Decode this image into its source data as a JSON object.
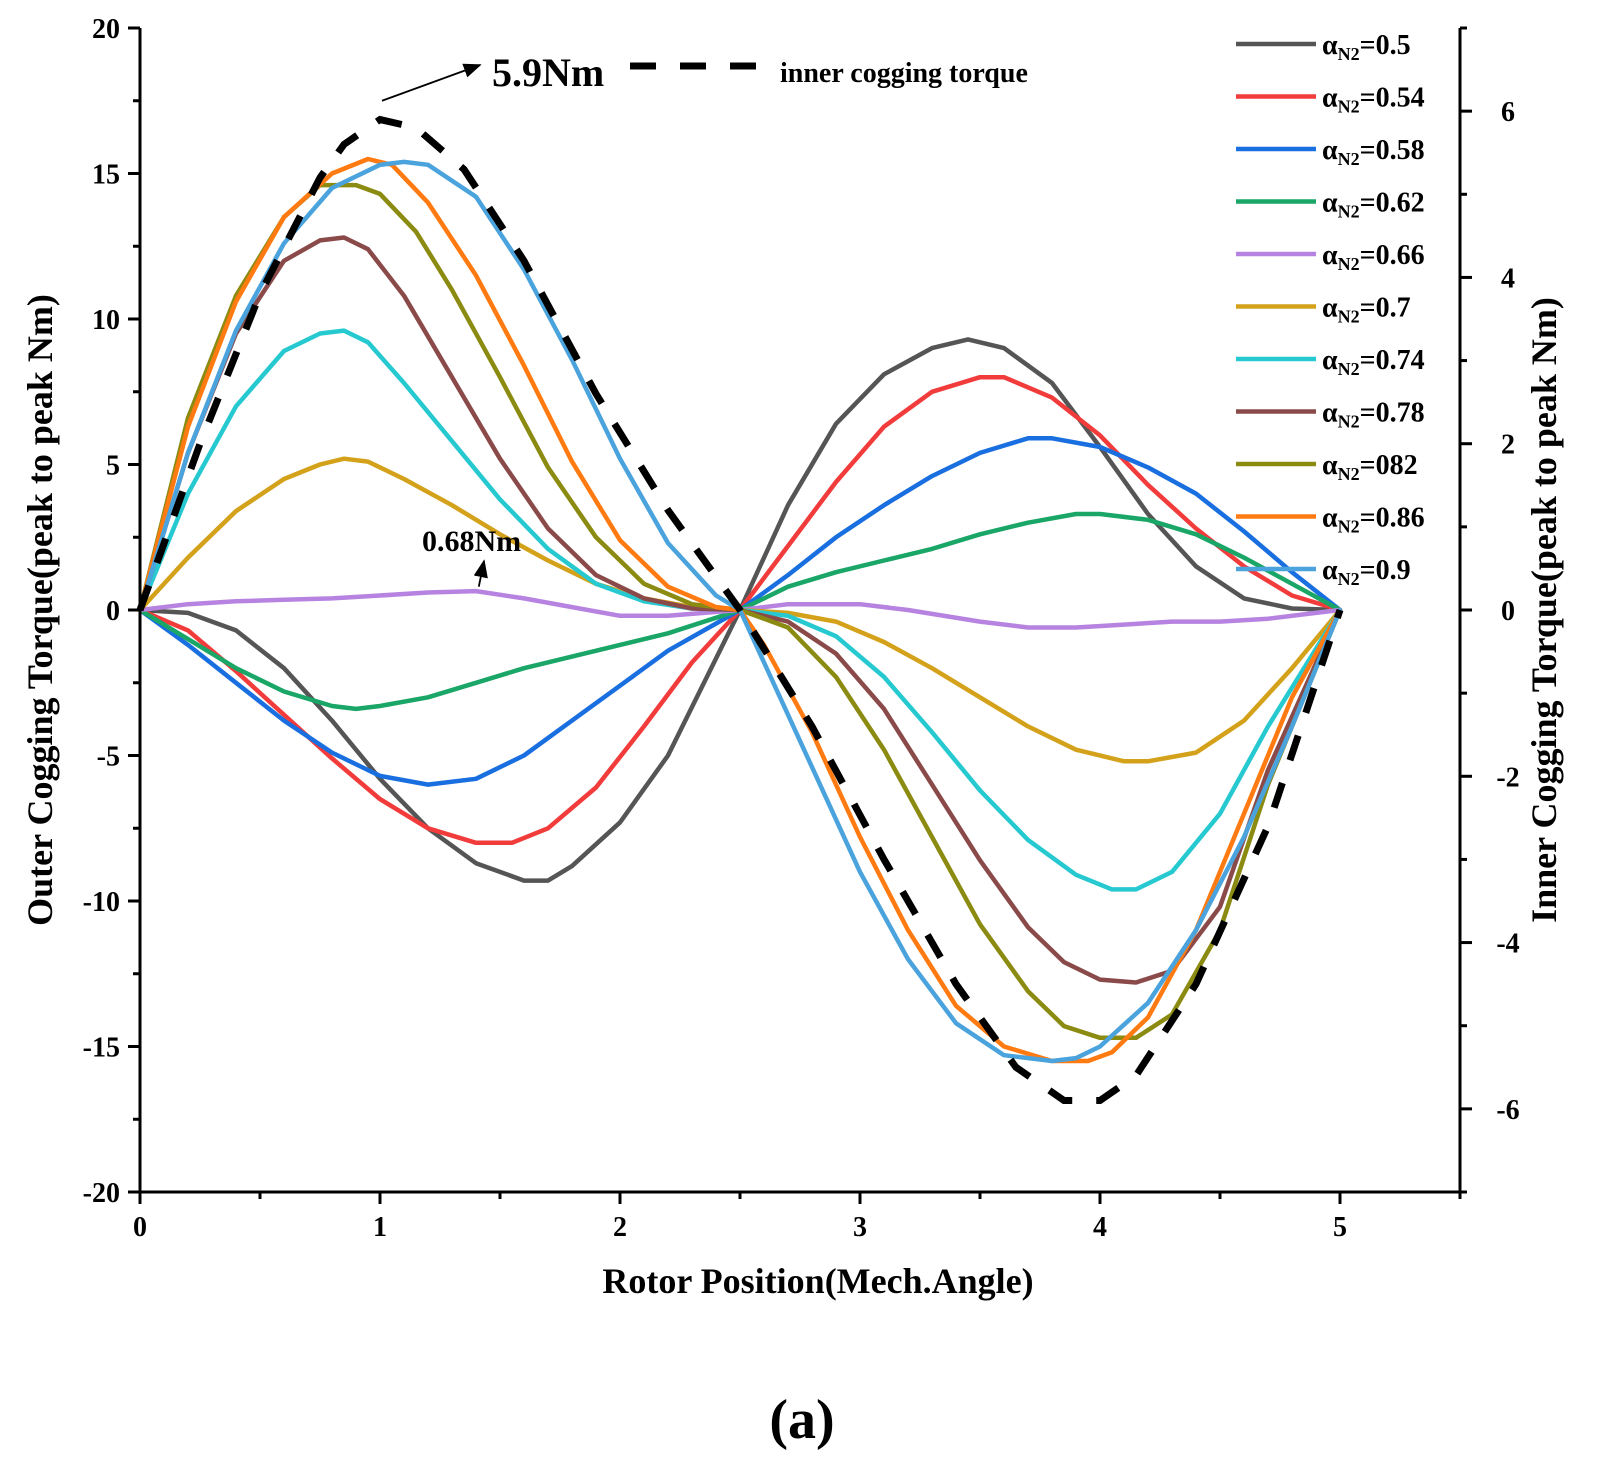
{
  "chart_data": {
    "type": "line",
    "title": "",
    "xlabel": "Rotor Position(Mech.Angle)",
    "ylabel": "Outer Cogging Torque(peak to peak Nm)",
    "y2label": "Inner Cogging Torque(peak to peak Nm)",
    "xlim": [
      0,
      5.5
    ],
    "ylim": [
      -20,
      20
    ],
    "y2lim": [
      -7,
      7
    ],
    "x_ticks": [
      "0",
      "1",
      "2",
      "3",
      "4",
      "5"
    ],
    "y_ticks": [
      "-20",
      "-15",
      "-10",
      "-5",
      "0",
      "5",
      "10",
      "15",
      "20"
    ],
    "y2_ticks": [
      "-6",
      "-4",
      "-2",
      "0",
      "2",
      "4",
      "6"
    ],
    "x_tick_values": [
      0,
      1,
      2,
      3,
      4,
      5
    ],
    "y_tick_values": [
      -20,
      -15,
      -10,
      -5,
      0,
      5,
      10,
      15,
      20
    ],
    "y2_tick_values": [
      -6,
      -4,
      -2,
      0,
      2,
      4,
      6
    ],
    "grid": false,
    "legend_position": "top-right",
    "series": [
      {
        "name": "αN2=0.5",
        "label_main": "α",
        "label_sub": "N2",
        "label_rest": "=0.5",
        "color": "#555555",
        "x": [
          0,
          0.2,
          0.4,
          0.6,
          0.8,
          1.0,
          1.2,
          1.4,
          1.6,
          1.7,
          1.8,
          2.0,
          2.2,
          2.5,
          2.7,
          2.9,
          3.1,
          3.3,
          3.45,
          3.6,
          3.8,
          4.0,
          4.2,
          4.4,
          4.6,
          4.8,
          5.0
        ],
        "y": [
          0,
          -0.1,
          -0.7,
          -2.0,
          -3.8,
          -5.8,
          -7.5,
          -8.7,
          -9.3,
          -9.3,
          -8.8,
          -7.3,
          -5.0,
          0,
          3.6,
          6.4,
          8.1,
          9.0,
          9.3,
          9.0,
          7.8,
          5.6,
          3.3,
          1.5,
          0.4,
          0.05,
          0
        ]
      },
      {
        "name": "αN2=0.54",
        "label_main": "α",
        "label_sub": "N2",
        "label_rest": "=0.54",
        "color": "#f23b3b",
        "x": [
          0,
          0.2,
          0.4,
          0.6,
          0.8,
          1.0,
          1.2,
          1.4,
          1.55,
          1.7,
          1.9,
          2.1,
          2.3,
          2.5,
          2.7,
          2.9,
          3.1,
          3.3,
          3.5,
          3.6,
          3.8,
          4.0,
          4.2,
          4.4,
          4.6,
          4.8,
          5.0
        ],
        "y": [
          0,
          -0.7,
          -2.1,
          -3.6,
          -5.1,
          -6.5,
          -7.5,
          -8.0,
          -8.0,
          -7.5,
          -6.1,
          -4.0,
          -1.8,
          0,
          2.2,
          4.4,
          6.3,
          7.5,
          8.0,
          8.0,
          7.3,
          6.0,
          4.3,
          2.8,
          1.5,
          0.5,
          0
        ]
      },
      {
        "name": "αN2=0.58",
        "label_main": "α",
        "label_sub": "N2",
        "label_rest": "=0.58",
        "color": "#1a6fe0",
        "x": [
          0,
          0.2,
          0.4,
          0.6,
          0.8,
          1.0,
          1.2,
          1.4,
          1.6,
          1.8,
          2.0,
          2.2,
          2.5,
          2.7,
          2.9,
          3.1,
          3.3,
          3.5,
          3.7,
          3.8,
          4.0,
          4.2,
          4.4,
          4.6,
          4.8,
          5.0
        ],
        "y": [
          0,
          -1.2,
          -2.5,
          -3.8,
          -4.9,
          -5.7,
          -6.0,
          -5.8,
          -5.0,
          -3.8,
          -2.6,
          -1.4,
          0,
          1.2,
          2.5,
          3.6,
          4.6,
          5.4,
          5.9,
          5.9,
          5.6,
          4.9,
          4.0,
          2.7,
          1.3,
          0
        ]
      },
      {
        "name": "αN2=0.62",
        "label_main": "α",
        "label_sub": "N2",
        "label_rest": "=0.62",
        "color": "#19a666",
        "x": [
          0,
          0.2,
          0.4,
          0.6,
          0.8,
          0.9,
          1.0,
          1.2,
          1.4,
          1.6,
          1.8,
          2.0,
          2.2,
          2.5,
          2.7,
          2.9,
          3.1,
          3.3,
          3.5,
          3.7,
          3.9,
          4.0,
          4.2,
          4.4,
          4.6,
          4.8,
          5.0
        ],
        "y": [
          0,
          -1.0,
          -2.0,
          -2.8,
          -3.3,
          -3.4,
          -3.3,
          -3.0,
          -2.5,
          -2.0,
          -1.6,
          -1.2,
          -0.8,
          0,
          0.8,
          1.3,
          1.7,
          2.1,
          2.6,
          3.0,
          3.3,
          3.3,
          3.1,
          2.6,
          1.8,
          0.9,
          0
        ]
      },
      {
        "name": "αN2=0.66",
        "label_main": "α",
        "label_sub": "N2",
        "label_rest": "=0.66",
        "color": "#b783e0",
        "x": [
          0,
          0.2,
          0.4,
          0.6,
          0.8,
          1.0,
          1.2,
          1.4,
          1.6,
          1.8,
          2.0,
          2.2,
          2.5,
          2.7,
          3.0,
          3.2,
          3.5,
          3.7,
          3.9,
          4.1,
          4.3,
          4.5,
          4.7,
          4.9,
          5.0
        ],
        "y": [
          0,
          0.2,
          0.3,
          0.35,
          0.4,
          0.5,
          0.6,
          0.65,
          0.4,
          0.1,
          -0.2,
          -0.2,
          0,
          0.2,
          0.2,
          0.0,
          -0.4,
          -0.6,
          -0.6,
          -0.5,
          -0.4,
          -0.4,
          -0.3,
          -0.1,
          0
        ]
      },
      {
        "name": "αN2=0.7",
        "label_main": "α",
        "label_sub": "N2",
        "label_rest": "=0.7",
        "color": "#d4a11a",
        "x": [
          0,
          0.2,
          0.4,
          0.6,
          0.75,
          0.85,
          0.95,
          1.1,
          1.3,
          1.5,
          1.7,
          1.9,
          2.1,
          2.3,
          2.5,
          2.7,
          2.9,
          3.1,
          3.3,
          3.5,
          3.7,
          3.9,
          4.1,
          4.2,
          4.4,
          4.6,
          4.8,
          5.0
        ],
        "y": [
          0,
          1.8,
          3.4,
          4.5,
          5.0,
          5.2,
          5.1,
          4.5,
          3.6,
          2.6,
          1.7,
          0.9,
          0.4,
          0.1,
          0,
          -0.1,
          -0.4,
          -1.1,
          -2.0,
          -3.0,
          -4.0,
          -4.8,
          -5.2,
          -5.2,
          -4.9,
          -3.8,
          -2.0,
          0
        ]
      },
      {
        "name": "αN2=0.74",
        "label_main": "α",
        "label_sub": "N2",
        "label_rest": "=0.74",
        "color": "#27c9d1",
        "x": [
          0,
          0.2,
          0.4,
          0.6,
          0.75,
          0.85,
          0.95,
          1.1,
          1.3,
          1.5,
          1.7,
          1.9,
          2.1,
          2.3,
          2.5,
          2.7,
          2.9,
          3.1,
          3.3,
          3.5,
          3.7,
          3.9,
          4.05,
          4.15,
          4.3,
          4.5,
          4.7,
          5.0
        ],
        "y": [
          0,
          4.0,
          7.0,
          8.9,
          9.5,
          9.6,
          9.2,
          7.8,
          5.8,
          3.8,
          2.1,
          0.9,
          0.3,
          0.05,
          0,
          -0.2,
          -0.9,
          -2.3,
          -4.2,
          -6.2,
          -7.9,
          -9.1,
          -9.6,
          -9.6,
          -9.0,
          -7.0,
          -4.0,
          0
        ]
      },
      {
        "name": "αN2=0.78",
        "label_main": "α",
        "label_sub": "N2",
        "label_rest": "=0.78",
        "color": "#8b4a4a",
        "x": [
          0,
          0.2,
          0.4,
          0.6,
          0.75,
          0.85,
          0.95,
          1.1,
          1.3,
          1.5,
          1.7,
          1.9,
          2.1,
          2.3,
          2.5,
          2.7,
          2.9,
          3.1,
          3.3,
          3.5,
          3.7,
          3.85,
          4.0,
          4.15,
          4.3,
          4.5,
          4.7,
          5.0
        ],
        "y": [
          0,
          5.4,
          9.5,
          12.0,
          12.7,
          12.8,
          12.4,
          10.8,
          8.0,
          5.2,
          2.8,
          1.2,
          0.4,
          0.05,
          0,
          -0.4,
          -1.5,
          -3.4,
          -6.0,
          -8.6,
          -10.9,
          -12.1,
          -12.7,
          -12.8,
          -12.4,
          -10.2,
          -5.5,
          0
        ]
      },
      {
        "name": "αN2=082",
        "label_main": "α",
        "label_sub": "N2",
        "label_rest": "=082",
        "color": "#8b8b12",
        "x": [
          0,
          0.2,
          0.4,
          0.6,
          0.75,
          0.9,
          1.0,
          1.15,
          1.3,
          1.5,
          1.7,
          1.9,
          2.1,
          2.3,
          2.5,
          2.7,
          2.9,
          3.1,
          3.3,
          3.5,
          3.7,
          3.85,
          4.0,
          4.15,
          4.3,
          4.5,
          4.7,
          5.0
        ],
        "y": [
          0,
          6.6,
          10.8,
          13.5,
          14.6,
          14.6,
          14.3,
          13.0,
          11.0,
          8.0,
          4.9,
          2.5,
          0.9,
          0.2,
          0,
          -0.6,
          -2.3,
          -4.8,
          -7.8,
          -10.8,
          -13.1,
          -14.3,
          -14.7,
          -14.7,
          -13.9,
          -11.0,
          -6.0,
          0
        ]
      },
      {
        "name": "αN2=0.86",
        "label_main": "α",
        "label_sub": "N2",
        "label_rest": "=0.86",
        "color": "#ff7a10",
        "x": [
          0,
          0.2,
          0.4,
          0.6,
          0.8,
          0.95,
          1.05,
          1.2,
          1.4,
          1.6,
          1.8,
          2.0,
          2.2,
          2.4,
          2.5,
          2.6,
          2.8,
          3.0,
          3.2,
          3.4,
          3.6,
          3.8,
          3.95,
          4.05,
          4.2,
          4.4,
          4.6,
          4.8,
          5.0
        ],
        "y": [
          0,
          6.3,
          10.6,
          13.5,
          15.0,
          15.5,
          15.3,
          14.0,
          11.5,
          8.4,
          5.1,
          2.4,
          0.8,
          0.1,
          0,
          -1.2,
          -4.2,
          -7.8,
          -11.0,
          -13.6,
          -15.0,
          -15.5,
          -15.5,
          -15.2,
          -14.0,
          -11.0,
          -7.0,
          -3.0,
          0
        ]
      },
      {
        "name": "αN2=0.9",
        "label_main": "α",
        "label_sub": "N2",
        "label_rest": "=0.9",
        "color": "#4aa3dc",
        "x": [
          0,
          0.2,
          0.4,
          0.6,
          0.8,
          1.0,
          1.1,
          1.2,
          1.4,
          1.6,
          1.8,
          2.0,
          2.2,
          2.4,
          2.5,
          2.6,
          2.8,
          3.0,
          3.2,
          3.4,
          3.6,
          3.8,
          3.9,
          4.0,
          4.2,
          4.4,
          4.6,
          4.8,
          5.0
        ],
        "y": [
          0,
          5.4,
          9.6,
          12.6,
          14.5,
          15.3,
          15.4,
          15.3,
          14.2,
          11.7,
          8.6,
          5.2,
          2.3,
          0.5,
          0,
          -1.8,
          -5.4,
          -9.0,
          -12.0,
          -14.2,
          -15.3,
          -15.5,
          -15.4,
          -15.0,
          -13.5,
          -11.0,
          -7.8,
          -4.0,
          0
        ]
      }
    ],
    "inner_series": {
      "name": "inner cogging torque",
      "color": "#000000",
      "axis": "right",
      "x": [
        0,
        0.25,
        0.5,
        0.75,
        0.85,
        1.0,
        1.15,
        1.35,
        1.6,
        1.9,
        2.2,
        2.5,
        2.8,
        3.1,
        3.4,
        3.65,
        3.85,
        4.0,
        4.15,
        4.4,
        4.7,
        5.0
      ],
      "y": [
        0,
        2.0,
        3.8,
        5.2,
        5.6,
        5.9,
        5.8,
        5.3,
        4.2,
        2.6,
        1.2,
        0,
        -1.4,
        -3.0,
        -4.5,
        -5.5,
        -5.9,
        -5.9,
        -5.6,
        -4.5,
        -2.6,
        0
      ]
    },
    "annotations": [
      {
        "text": "5.9Nm",
        "target_x": 0.95,
        "target_y": 17.5,
        "x": 1.45,
        "y": 18.9
      },
      {
        "text": "0.68Nm",
        "target_x": 1.42,
        "target_y": 0.8,
        "x": 1.1,
        "y": 2.3
      }
    ]
  },
  "caption": {
    "text": "(a)"
  }
}
